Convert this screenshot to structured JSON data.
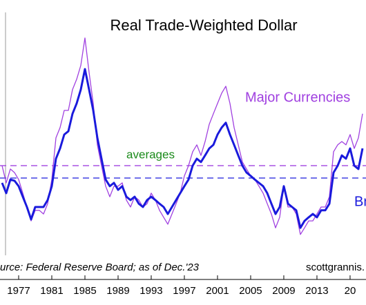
{
  "chart_data": {
    "type": "line",
    "title": "Real Trade-Weighted Dollar",
    "source": "urce: Federal Reserve Board; as of Dec.'23",
    "credit": "scottgrannis.",
    "annotation": {
      "text": "averages",
      "color": "#1a8a1a"
    },
    "x": [
      1975,
      1975.5,
      1976,
      1976.5,
      1977,
      1977.5,
      1978,
      1978.5,
      1979,
      1979.5,
      1980,
      1980.5,
      1981,
      1981.5,
      1982,
      1982.5,
      1983,
      1983.5,
      1984,
      1984.5,
      1985,
      1985.5,
      1986,
      1986.5,
      1987,
      1987.5,
      1988,
      1988.5,
      1989,
      1989.5,
      1990,
      1990.5,
      1991,
      1991.5,
      1992,
      1992.5,
      1993,
      1993.5,
      1994,
      1994.5,
      1995,
      1995.5,
      1996,
      1996.5,
      1997,
      1997.5,
      1998,
      1998.5,
      1999,
      1999.5,
      2000,
      2000.5,
      2001,
      2001.5,
      2002,
      2002.5,
      2003,
      2003.5,
      2004,
      2004.5,
      2005,
      2005.5,
      2006,
      2006.5,
      2007,
      2007.5,
      2008,
      2008.5,
      2009,
      2009.5,
      2010,
      2010.5,
      2011,
      2011.5,
      2012,
      2012.5,
      2013,
      2013.5,
      2014,
      2014.5,
      2015,
      2015.5,
      2016,
      2016.5,
      2017,
      2017.5,
      2018,
      2018.5
    ],
    "series": [
      {
        "name": "Major Currencies",
        "color": "#a040e0",
        "width": 1.3,
        "average": 89.7,
        "values": [
          89.7,
          84.0,
          88.6,
          87.4,
          85.1,
          80.6,
          76.0,
          71.4,
          74.9,
          74.9,
          73.7,
          77.1,
          85.1,
          98.9,
          102.3,
          108.0,
          108.0,
          114.9,
          118.3,
          122.9,
          132.0,
          120.6,
          110.3,
          96.6,
          89.7,
          82.9,
          79.4,
          82.9,
          82.9,
          84.0,
          78.3,
          76.0,
          79.4,
          78.3,
          76.0,
          77.1,
          80.6,
          78.3,
          74.9,
          72.6,
          70.3,
          73.7,
          77.1,
          80.6,
          86.3,
          89.7,
          94.3,
          96.6,
          93.1,
          97.7,
          103.4,
          106.9,
          110.3,
          113.7,
          116.0,
          110.3,
          102.3,
          96.6,
          90.9,
          88.6,
          86.3,
          85.1,
          82.9,
          80.6,
          77.1,
          73.7,
          69.1,
          72.6,
          82.9,
          76.0,
          76.0,
          73.7,
          66.9,
          69.1,
          71.4,
          71.4,
          73.7,
          76.0,
          76.0,
          79.4,
          94.3,
          96.6,
          97.7,
          96.6,
          100.0,
          95.4,
          98.9,
          106.9
        ]
      },
      {
        "name": "Br",
        "color": "#1a1adc",
        "width": 3,
        "average": 85.6,
        "values": [
          84.0,
          80.6,
          85.1,
          84.7,
          82.9,
          79.4,
          76.0,
          71.9,
          76.0,
          76.0,
          76.0,
          78.3,
          82.9,
          92.0,
          95.4,
          100.0,
          101.1,
          106.9,
          110.3,
          114.9,
          121.7,
          114.9,
          108.0,
          98.9,
          92.0,
          85.1,
          82.9,
          84.0,
          81.7,
          82.9,
          79.4,
          78.3,
          79.4,
          77.1,
          76.0,
          78.3,
          79.4,
          78.3,
          77.1,
          76.0,
          73.7,
          76.0,
          78.3,
          80.6,
          82.9,
          85.1,
          89.7,
          92.0,
          90.9,
          93.1,
          95.4,
          96.6,
          100.0,
          102.3,
          103.9,
          100.0,
          96.6,
          93.1,
          89.7,
          87.4,
          86.3,
          85.1,
          84.0,
          82.9,
          80.6,
          77.1,
          73.7,
          76.0,
          82.9,
          77.1,
          76.0,
          74.9,
          69.1,
          71.4,
          72.6,
          73.7,
          72.6,
          74.9,
          74.9,
          77.1,
          87.4,
          89.7,
          93.1,
          92.0,
          95.4,
          89.7,
          88.6,
          95.4
        ]
      }
    ],
    "xlim": [
      1974.75,
      2018.92
    ],
    "xticks": [
      1977,
      1981,
      1985,
      1989,
      1993,
      1997,
      2001,
      2005,
      2009,
      2013,
      {
        "value": 2017,
        "label": "20"
      }
    ],
    "ylim": [
      60,
      140
    ]
  }
}
